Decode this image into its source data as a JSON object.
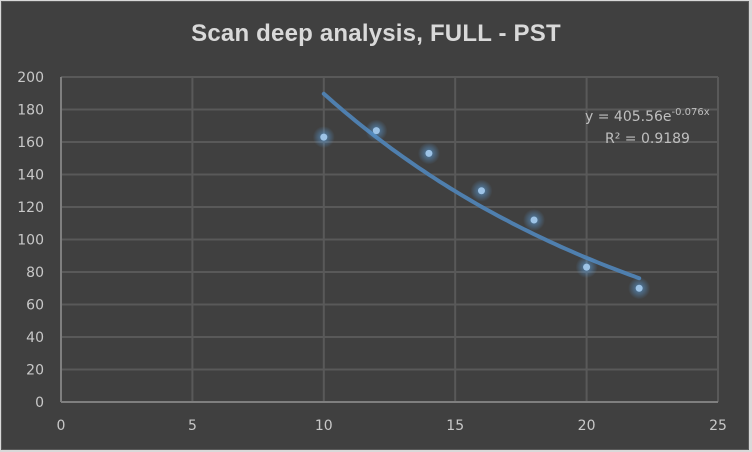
{
  "chart_data": {
    "type": "scatter",
    "title": "Scan deep analysis, FULL - PST",
    "xlabel": "",
    "ylabel": "",
    "xlim": [
      0,
      25
    ],
    "ylim": [
      0,
      200
    ],
    "x_ticks": [
      0,
      5,
      10,
      15,
      20,
      25
    ],
    "y_ticks": [
      0,
      20,
      40,
      60,
      80,
      100,
      120,
      140,
      160,
      180,
      200
    ],
    "grid": true,
    "legend": null,
    "series": [
      {
        "name": "Scan deep analysis, FULL - PST",
        "x": [
          10,
          12,
          14,
          16,
          18,
          20,
          22
        ],
        "values": [
          163,
          167,
          153,
          130,
          112,
          83,
          70
        ],
        "color": "#9dc3e6"
      }
    ],
    "trendline": {
      "type": "exponential",
      "a": 405.56,
      "b": -0.076,
      "x_range": [
        10,
        22
      ],
      "color": "#4f7fae",
      "equation_text": "y = 405.56e",
      "equation_exponent": "-0.076x",
      "r2_text": "R² = 0.9189"
    }
  },
  "colors": {
    "background": "#404040",
    "gridline": "#595959",
    "axis": "#7f7f7f",
    "text": "#c8c8c8",
    "title": "#d9d9d9"
  }
}
